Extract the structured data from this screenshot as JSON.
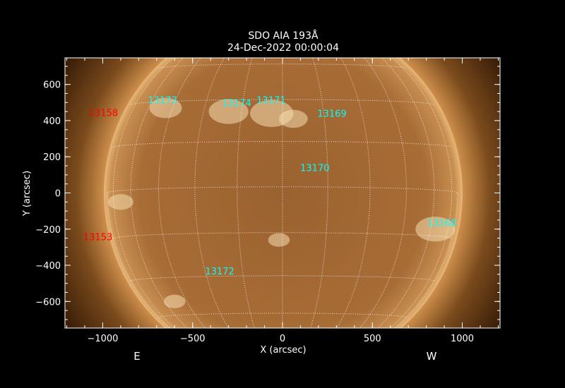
{
  "chart_data": {
    "type": "image",
    "title": "SDO AIA 193Å",
    "subtitle": "24-Dec-2022 00:00:04",
    "xlabel": "X (arcsec)",
    "ylabel": "Y (arcsec)",
    "xlim": [
      -1210,
      1210
    ],
    "ylim": [
      -747,
      747
    ],
    "xticks": [
      -1000,
      -500,
      0,
      500,
      1000
    ],
    "yticks": [
      -600,
      -400,
      -200,
      0,
      200,
      400,
      600
    ],
    "solar_radius_arcsec": 975,
    "grid": "heliographic, 15 degree spacing",
    "colormap": "sdoaia193 (brown-gold)",
    "side_labels": {
      "east": "E",
      "west": "W"
    },
    "colors": {
      "active_region": "#00ffff",
      "rotated_off_region": "#ff0000",
      "grid": "#ffffff"
    },
    "regions": [
      {
        "label": "13158",
        "x": -996,
        "y": 444,
        "color": "#ff0000"
      },
      {
        "label": "13173",
        "x": -667,
        "y": 514,
        "color": "#00ffff"
      },
      {
        "label": "13174",
        "x": -255,
        "y": 499,
        "color": "#00ffff"
      },
      {
        "label": "13171",
        "x": -63,
        "y": 514,
        "color": "#00ffff"
      },
      {
        "label": "13169",
        "x": 275,
        "y": 440,
        "color": "#00ffff"
      },
      {
        "label": "13170",
        "x": 180,
        "y": 140,
        "color": "#00ffff"
      },
      {
        "label": "13168",
        "x": 886,
        "y": -164,
        "color": "#00ffff"
      },
      {
        "label": "13153",
        "x": -1027,
        "y": -242,
        "color": "#ff0000"
      },
      {
        "label": "13172",
        "x": -349,
        "y": -432,
        "color": "#00ffff"
      }
    ]
  }
}
